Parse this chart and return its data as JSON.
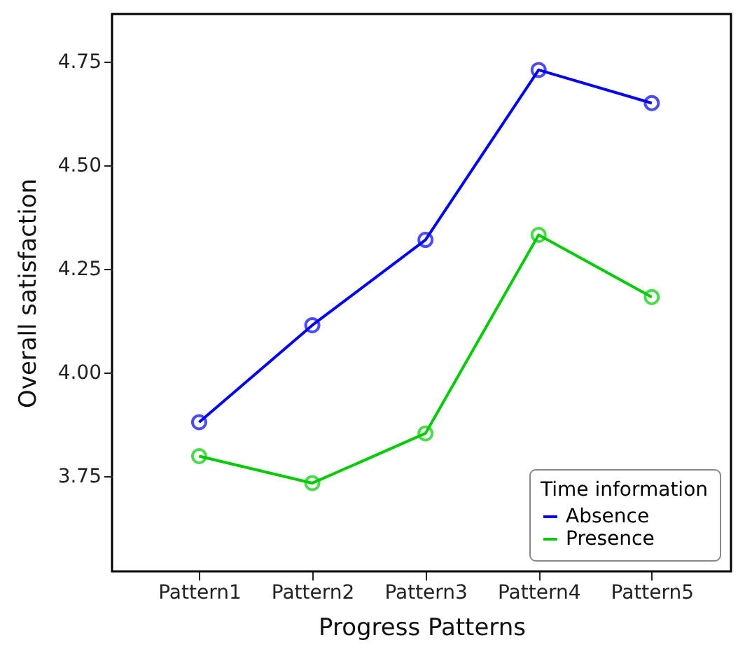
{
  "chart_data": {
    "type": "line",
    "xlabel": "Progress Patterns",
    "ylabel": "Overall satisfaction",
    "legend_title": "Time information",
    "categories": [
      "Pattern1",
      "Pattern2",
      "Pattern3",
      "Pattern4",
      "Pattern5"
    ],
    "series": [
      {
        "name": "Absence",
        "color": "#0000ff",
        "values": [
          3.88,
          4.114,
          4.32,
          4.73,
          4.65
        ]
      },
      {
        "name": "Presence",
        "color": "#00cc00",
        "values": [
          3.798,
          3.733,
          3.853,
          4.332,
          4.182
        ]
      }
    ],
    "ylim": [
      3.52,
      4.865
    ],
    "yticks": [
      3.75,
      {
        "value": 4,
        "label": "4.00"
      },
      4.25,
      {
        "value": 4.5,
        "label": "4.50"
      },
      4.75
    ],
    "grid": false,
    "legend": "bottom right",
    "marker": "circle",
    "line_style": "solid"
  }
}
